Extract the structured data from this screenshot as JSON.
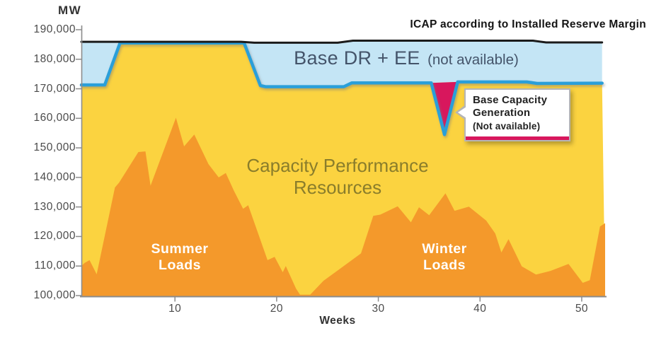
{
  "header": {
    "mw": "MW",
    "icap": "ICAP according to Installed Reserve Margin"
  },
  "band": {
    "main": "Base DR + EE",
    "sub": "(not available)"
  },
  "labels": {
    "capacity_line1": "Capacity Performance",
    "capacity_line2": "Resources",
    "summer_line1": "Summer",
    "summer_line2": "Loads",
    "winter_line1": "Winter",
    "winter_line2": "Loads"
  },
  "callout": {
    "line1": "Base Capacity",
    "line2": "Generation",
    "line3": "(Not available)"
  },
  "axis": {
    "x_label": "Weeks"
  },
  "colors": {
    "capacity_fill": "#FBD340",
    "load_fill": "#F4992B",
    "band_fill": "#C4E5F5",
    "capacity_stroke": "#2C9FD9",
    "icap_stroke": "#1b1b1b",
    "notch_fill": "#D8175D",
    "axis_gray": "#8c8c8c",
    "callout_accent": "#D8175D"
  },
  "chart_data": {
    "type": "area",
    "xlabel": "Weeks",
    "ylabel": "MW",
    "x_domain": [
      0.8,
      52.3
    ],
    "y_domain": [
      100000,
      190000
    ],
    "x_ticks": [
      10,
      20,
      30,
      40,
      50
    ],
    "y_ticks": [
      {
        "v": 190000,
        "label": "190,000"
      },
      {
        "v": 180000,
        "label": "180,000"
      },
      {
        "v": 170000,
        "label": "170,000"
      },
      {
        "v": 160000,
        "label": "160,000"
      },
      {
        "v": 150000,
        "label": "150,000"
      },
      {
        "v": 140000,
        "label": "140,000"
      },
      {
        "v": 130000,
        "label": "130,000"
      },
      {
        "v": 120000,
        "label": "120,000"
      },
      {
        "v": 110000,
        "label": "110,000"
      },
      {
        "v": 100000,
        "label": "100,000"
      }
    ],
    "series": {
      "icap_line": {
        "name": "ICAP according to Installed Reserve Margin",
        "points": [
          [
            0.8,
            185900
          ],
          [
            16.5,
            185900
          ],
          [
            17.8,
            185600
          ],
          [
            26.0,
            185600
          ],
          [
            27.5,
            186300
          ],
          [
            45.2,
            186300
          ],
          [
            46.5,
            185700
          ],
          [
            52.0,
            185700
          ]
        ]
      },
      "capacity_line": {
        "name": "Top of Capacity Performance Resources / bottom of Base DR + EE band",
        "points": [
          [
            0.8,
            171300
          ],
          [
            3.1,
            171300
          ],
          [
            4.6,
            185500
          ],
          [
            16.8,
            185500
          ],
          [
            18.4,
            171100
          ],
          [
            18.9,
            170700
          ],
          [
            26.6,
            170700
          ],
          [
            27.4,
            172000
          ],
          [
            35.2,
            172000
          ],
          [
            37.8,
            172300
          ],
          [
            44.6,
            172300
          ],
          [
            45.6,
            171800
          ],
          [
            52.0,
            171900
          ]
        ]
      },
      "notch": {
        "name": "Base Capacity Generation (Not available)",
        "points": [
          [
            35.2,
            172000
          ],
          [
            36.5,
            154500
          ],
          [
            37.8,
            172300
          ]
        ]
      },
      "load_area": {
        "name": "Summer / Winter Loads",
        "points": [
          [
            0.8,
            110000
          ],
          [
            1.1,
            111000
          ],
          [
            1.6,
            112000
          ],
          [
            2.3,
            107200
          ],
          [
            4.1,
            136600
          ],
          [
            4.5,
            138200
          ],
          [
            6.4,
            148600
          ],
          [
            7.1,
            148800
          ],
          [
            7.6,
            137200
          ],
          [
            10.1,
            160200
          ],
          [
            10.9,
            150500
          ],
          [
            11.9,
            154500
          ],
          [
            13.3,
            144500
          ],
          [
            14.3,
            140000
          ],
          [
            15.0,
            141500
          ],
          [
            15.8,
            135500
          ],
          [
            16.7,
            129400
          ],
          [
            17.2,
            130600
          ],
          [
            19.1,
            112000
          ],
          [
            19.8,
            113100
          ],
          [
            20.6,
            107900
          ],
          [
            20.9,
            110000
          ],
          [
            21.9,
            102400
          ],
          [
            22.3,
            100300
          ],
          [
            23.3,
            100300
          ],
          [
            24.6,
            105000
          ],
          [
            26.2,
            109000
          ],
          [
            28.3,
            114300
          ],
          [
            29.5,
            127000
          ],
          [
            30.2,
            127400
          ],
          [
            31.9,
            130200
          ],
          [
            33.2,
            124800
          ],
          [
            34.0,
            129900
          ],
          [
            35.0,
            127200
          ],
          [
            36.6,
            134600
          ],
          [
            37.5,
            128700
          ],
          [
            38.9,
            130100
          ],
          [
            40.6,
            125400
          ],
          [
            41.5,
            121000
          ],
          [
            42.1,
            114600
          ],
          [
            42.8,
            119100
          ],
          [
            44.1,
            109900
          ],
          [
            45.5,
            107100
          ],
          [
            46.9,
            108300
          ],
          [
            48.7,
            110700
          ],
          [
            50.1,
            104300
          ],
          [
            50.8,
            105200
          ],
          [
            51.8,
            123400
          ],
          [
            52.3,
            124500
          ]
        ]
      }
    }
  }
}
